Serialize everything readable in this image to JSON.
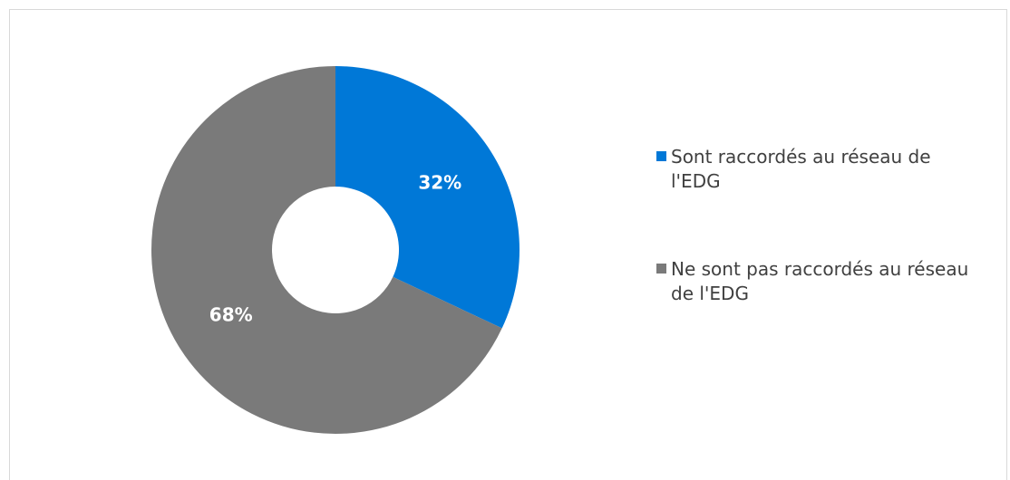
{
  "chart_data": {
    "type": "pie",
    "donut": true,
    "categories": [
      "Sont raccordés au réseau de l'EDG",
      "Ne sont pas raccordés au réseau de l'EDG"
    ],
    "values": [
      32,
      68
    ],
    "value_labels": [
      "32%",
      "68%"
    ],
    "colors": [
      "#0078d7",
      "#7a7a7a"
    ],
    "legend": "right"
  }
}
